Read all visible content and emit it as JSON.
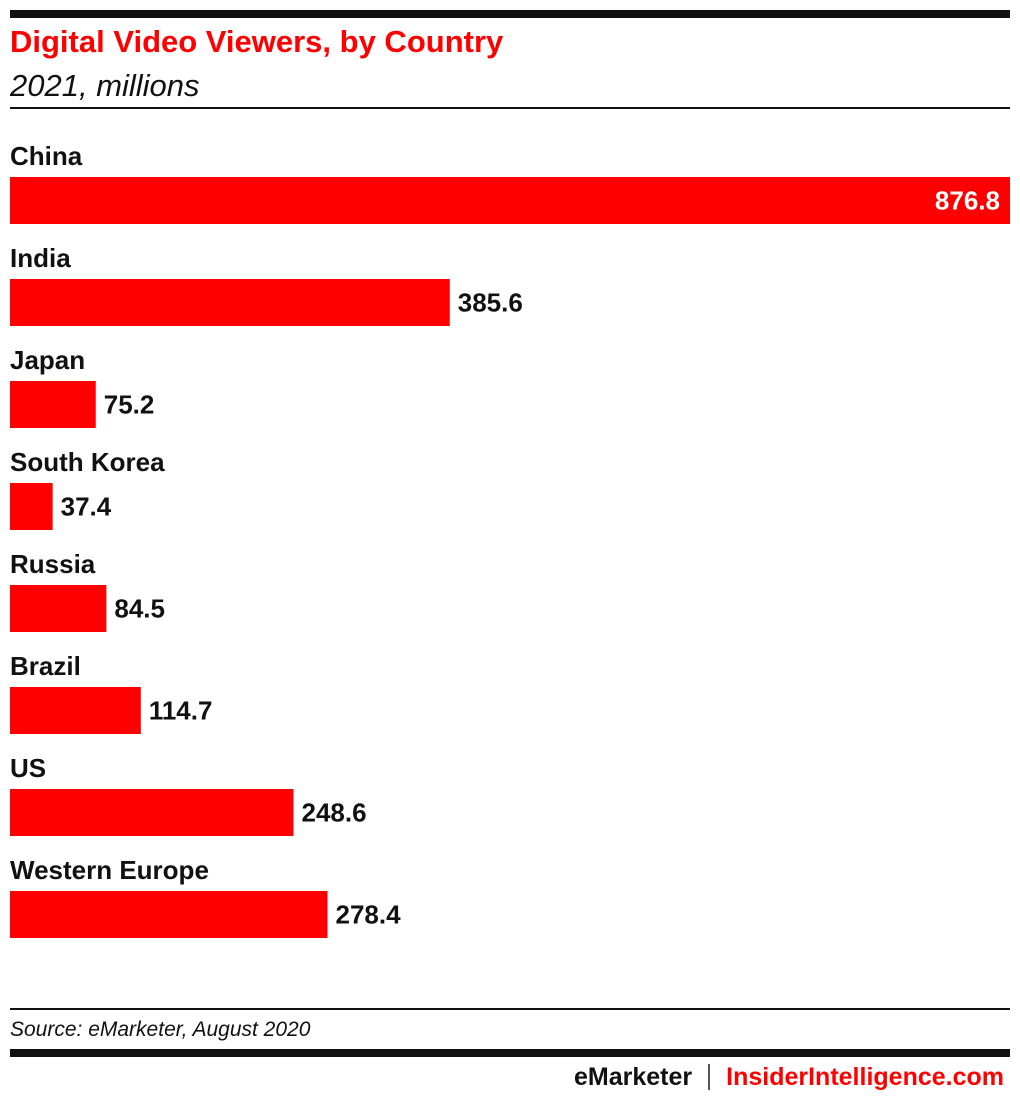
{
  "header": {
    "title": "Digital Video Viewers, by Country",
    "subtitle": "2021, millions"
  },
  "colors": {
    "accent": "#ff0000",
    "text": "#111111",
    "inside_label": "#ffffff"
  },
  "chart_data": {
    "type": "bar",
    "orientation": "horizontal",
    "title": "Digital Video Viewers, by Country",
    "subtitle": "2021, millions",
    "categories": [
      "China",
      "India",
      "Japan",
      "South Korea",
      "Russia",
      "Brazil",
      "US",
      "Western Europe"
    ],
    "values": [
      876.8,
      385.6,
      75.2,
      37.4,
      84.5,
      114.7,
      248.6,
      278.4
    ],
    "value_labels": [
      "876.8",
      "385.6",
      "75.2",
      "37.4",
      "84.5",
      "114.7",
      "248.6",
      "278.4"
    ],
    "xlim": [
      0,
      876.8
    ],
    "grid": false,
    "legend": "none",
    "bar_color": "#ff0000"
  },
  "footer": {
    "source": "Source: eMarketer, August 2020",
    "brand_left": "eMarketer",
    "brand_right": "InsiderIntelligence.com"
  }
}
